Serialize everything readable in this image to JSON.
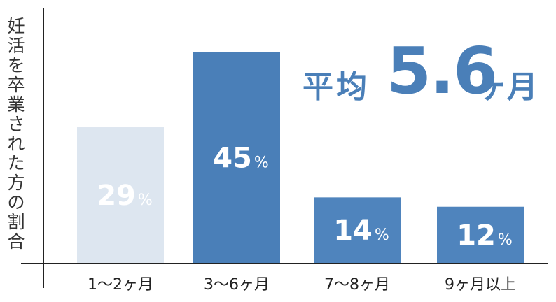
{
  "chart_data": {
    "type": "bar",
    "ylabel": "妊活を卒業された方の割合",
    "categories": [
      "1〜2ヶ月",
      "3〜6ヶ月",
      "7〜8ヶ月",
      "9ヶ月以上"
    ],
    "values": [
      29,
      45,
      14,
      12
    ],
    "value_labels": [
      "29",
      "45",
      "14",
      "12"
    ],
    "value_unit": "%",
    "ylim": [
      0,
      45
    ],
    "grid": false,
    "legend": "none"
  },
  "annotation": {
    "prefix": "平均",
    "value": "5.6",
    "unit": "ヶ月"
  },
  "colors": {
    "bar_faded": "#dde6f0",
    "bar_main": "#4a7fb8",
    "bar_mid": "#4f84bd",
    "axis": "#222222",
    "label_text": "#ffffff",
    "tick_text": "#222222"
  }
}
